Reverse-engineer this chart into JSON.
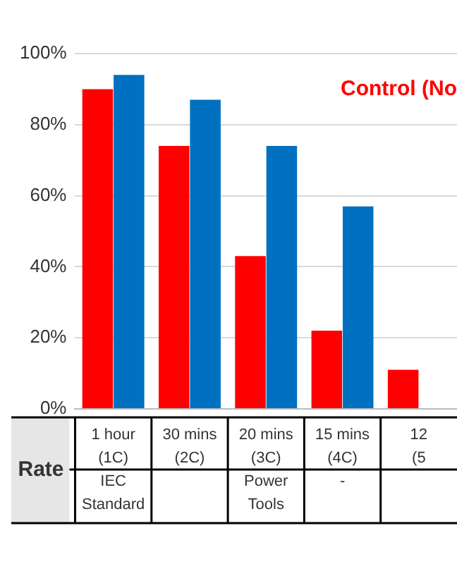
{
  "chart_data": {
    "type": "bar",
    "categories": [
      "1 hour (1C) IEC Standard",
      "30 mins (2C)",
      "20 mins (3C) Power Tools",
      "15 mins (4C) -",
      "12 (5"
    ],
    "series": [
      {
        "name": "Control (No",
        "color": "#ff0000",
        "values": [
          90,
          74,
          43,
          22,
          11
        ]
      },
      {
        "color": "#0070c0",
        "values": [
          94,
          87,
          74,
          57,
          null
        ]
      }
    ],
    "ylim": [
      0,
      100
    ],
    "yticks": [
      {
        "value": 0,
        "label": "0%"
      },
      {
        "value": 20,
        "label": "20%"
      },
      {
        "value": 40,
        "label": "40%"
      },
      {
        "value": 60,
        "label": "60%"
      },
      {
        "value": 80,
        "label": "80%"
      },
      {
        "value": 100,
        "label": "100%"
      }
    ],
    "grid": "y",
    "legend": "top right",
    "annotations": [
      "Rate"
    ]
  }
}
